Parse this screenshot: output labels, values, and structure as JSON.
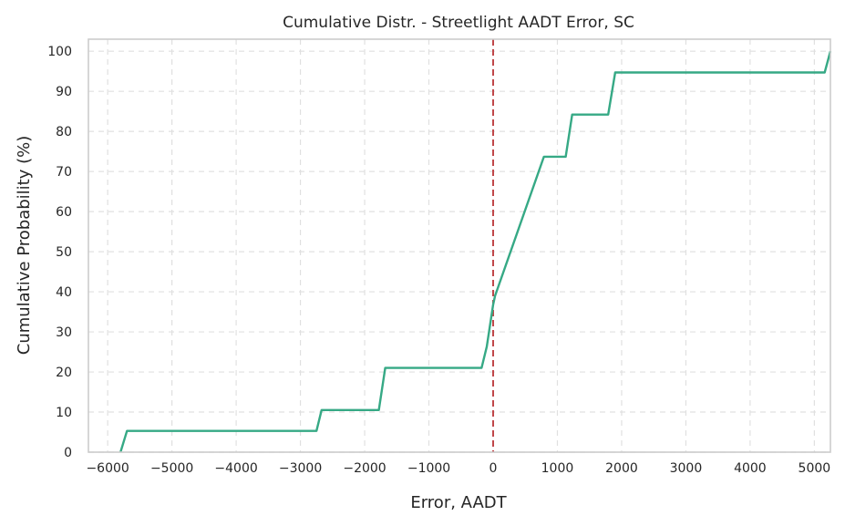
{
  "chart_data": {
    "type": "line",
    "title": "Cumulative Distr. - Streetlight AADT Error, SC",
    "xlabel": "Error, AADT",
    "ylabel": "Cumulative Probability (%)",
    "xlim": [
      -6300,
      5250
    ],
    "ylim": [
      0,
      103
    ],
    "xticks": [
      -6000,
      -5000,
      -4000,
      -3000,
      -2000,
      -1000,
      0,
      1000,
      2000,
      3000,
      4000,
      5000
    ],
    "xtick_labels": [
      "−6000",
      "−5000",
      "−4000",
      "−3000",
      "−2000",
      "−1000",
      "0",
      "1000",
      "2000",
      "3000",
      "4000",
      "5000"
    ],
    "yticks": [
      0,
      10,
      20,
      30,
      40,
      50,
      60,
      70,
      80,
      90,
      100
    ],
    "ytick_labels": [
      "0",
      "10",
      "20",
      "30",
      "40",
      "50",
      "60",
      "70",
      "80",
      "90",
      "100"
    ],
    "grid": true,
    "series": [
      {
        "color": "#36a985",
        "x": [
          -5800,
          -5700,
          -2750,
          -2670,
          -1780,
          -1680,
          -180,
          -100,
          0,
          30,
          790,
          1130,
          1230,
          1790,
          1900,
          5160,
          5250
        ],
        "y": [
          0,
          5.3,
          5.3,
          10.5,
          10.5,
          21,
          21,
          26.3,
          36.8,
          39,
          73.7,
          73.7,
          84.2,
          84.2,
          94.7,
          94.7,
          100
        ]
      }
    ],
    "reference_line": {
      "x": 0,
      "color": "#c0474a",
      "style": "dashed"
    }
  },
  "colors": {
    "grid": "#e0e0e0",
    "spine": "#cccccc",
    "text": "#262626"
  }
}
